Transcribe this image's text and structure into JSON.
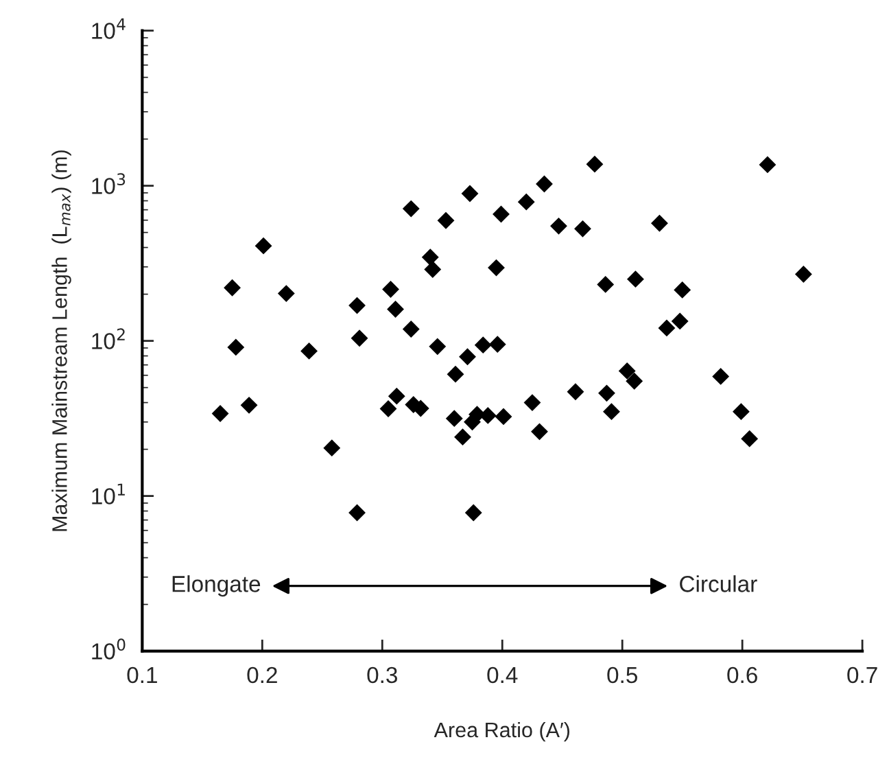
{
  "chart_data": {
    "type": "scatter",
    "xlabel": "Area Ratio (A′)",
    "ylabel": "Maximum Mainstream Length  (L$_{max}$) (m)",
    "annotations": [
      "Elongate",
      "Circular"
    ],
    "series": [
      {
        "color": "#000000",
        "marker": "diamond",
        "x": [
          0.175,
          0.178,
          0.201,
          0.22,
          0.239,
          0.279,
          0.281,
          0.307,
          0.311,
          0.324,
          0.324,
          0.34,
          0.342,
          0.346,
          0.353,
          0.361,
          0.371,
          0.373,
          0.384,
          0.395,
          0.396,
          0.399,
          0.42,
          0.435,
          0.447,
          0.467,
          0.477,
          0.486,
          0.511,
          0.531,
          0.55,
          0.548,
          0.537,
          0.621,
          0.651,
          0.504,
          0.51,
          0.582,
          0.461,
          0.487,
          0.165,
          0.189,
          0.258,
          0.279,
          0.305,
          0.312,
          0.326,
          0.332,
          0.36,
          0.367,
          0.375,
          0.379,
          0.388,
          0.376,
          0.401,
          0.425,
          0.431,
          0.491,
          0.599,
          0.606
        ],
        "values": [
          220,
          91,
          410,
          202,
          86,
          169,
          104,
          215,
          160,
          119,
          711,
          346,
          289,
          92,
          597,
          61,
          79,
          891,
          94,
          296,
          95,
          656,
          787,
          1027,
          550,
          528,
          1378,
          231,
          250,
          573,
          213,
          134,
          121,
          1367,
          269,
          64,
          55,
          59,
          47,
          46,
          34,
          38.5,
          20.4,
          7.8,
          36.5,
          44,
          38.8,
          36.7,
          31.6,
          24,
          30,
          33.6,
          33,
          7.8,
          32.5,
          40,
          26,
          35,
          35,
          23.4
        ]
      }
    ],
    "xlim": [
      0.1,
      0.7
    ],
    "xticks": [
      0.1,
      0.2,
      0.3,
      0.4,
      0.5,
      0.6,
      0.7
    ],
    "log": "y",
    "ylim": [
      1,
      10000
    ],
    "yticks": [
      {
        "value": 1,
        "label": "10$^{0}$"
      },
      {
        "value": 10,
        "label": "10$^{1}$"
      },
      {
        "value": 100,
        "label": "10$^{2}$"
      },
      {
        "value": 1000,
        "label": "10$^{3}$"
      },
      {
        "value": 10000,
        "label": "10$^{4}$"
      }
    ],
    "grid": false,
    "legend": false
  }
}
